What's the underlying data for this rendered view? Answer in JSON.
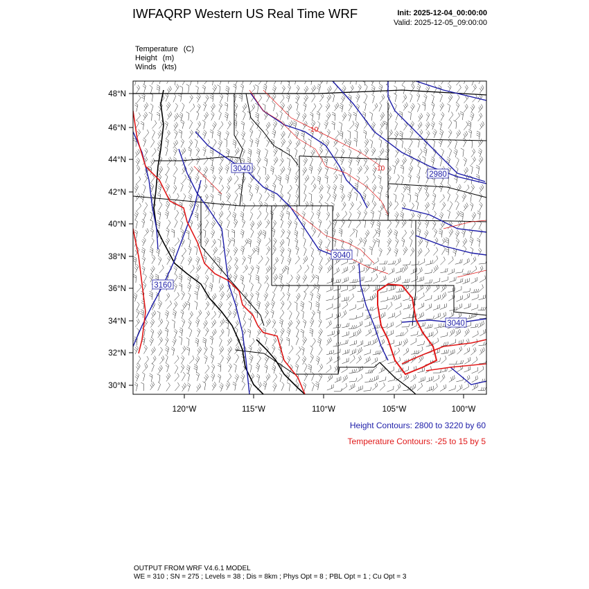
{
  "header": {
    "title": "IWFAQRP Western US Real Time WRF",
    "init": "Init: 2025-12-04_00:00:00",
    "valid": "Valid: 2025-12-05_09:00:00"
  },
  "fields": [
    {
      "name": "Temperature",
      "unit": "(C)"
    },
    {
      "name": "Height",
      "unit": "(m)"
    },
    {
      "name": "Winds",
      "unit": "(kts)"
    }
  ],
  "map": {
    "lat_range": [
      29.5,
      48.8
    ],
    "lon_range": [
      -123.6,
      -98.2
    ],
    "lat_ticks": [
      "30°N",
      "32°N",
      "34°N",
      "36°N",
      "38°N",
      "40°N",
      "42°N",
      "44°N",
      "46°N",
      "48°N"
    ],
    "lon_ticks": [
      "120°W",
      "115°W",
      "110°W",
      "105°W",
      "100°W"
    ],
    "height_labels": [
      "3040",
      "2980",
      "3160",
      "3040",
      "3040"
    ],
    "temp_labels": [
      "-10",
      "-10"
    ],
    "colors": {
      "height": "#1c1ca8",
      "temperature": "#e01818",
      "borders": "#000000",
      "barbs": "#000000"
    }
  },
  "legend": {
    "height_contours": "Height Contours: 2800 to 3220 by 60",
    "temperature_contours": "Temperature Contours: -25 to 15 by 5"
  },
  "footer": {
    "model": "OUTPUT FROM WRF V4.6.1 MODEL",
    "config": "WE = 310 ; SN = 275 ; Levels = 38 ; Dis = 8km ; Phys Opt = 8 ; PBL Opt = 1 ; Cu Opt = 3"
  }
}
